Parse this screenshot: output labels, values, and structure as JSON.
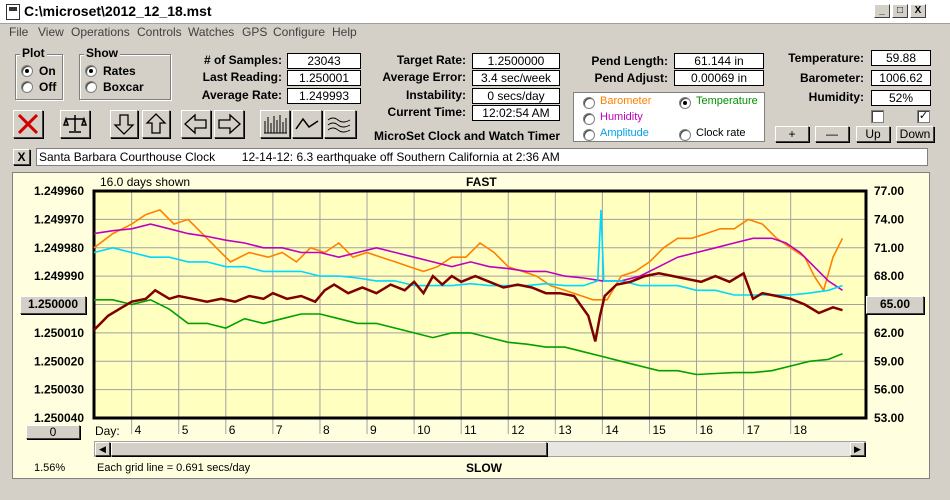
{
  "window": {
    "title": "C:\\microset\\2012_12_18.mst",
    "min": "_",
    "max": "□",
    "close": "X"
  },
  "menu": [
    "File",
    "View",
    "Operations",
    "Controls",
    "Watches",
    "GPS",
    "Configure",
    "Help"
  ],
  "plot": {
    "title": "Plot",
    "on": "On",
    "off": "Off",
    "selected": "On"
  },
  "show": {
    "title": "Show",
    "rates": "Rates",
    "boxcar": "Boxcar",
    "selected": "Rates"
  },
  "stats": {
    "samples_label": "# of Samples:",
    "samples": "23043",
    "last_label": "Last Reading:",
    "last": "1.250001",
    "avg_label": "Average Rate:",
    "avg": "1.249993",
    "target_label": "Target Rate:",
    "target": "1.2500000",
    "error_label": "Average Error:",
    "error": "3.4 sec/week",
    "instab_label": "Instability:",
    "instab": "0 secs/day",
    "time_label": "Current Time:",
    "time": "12:02:54 AM",
    "pend_len_label": "Pend Length:",
    "pend_len": "61.144 in",
    "pend_adj_label": "Pend Adjust:",
    "pend_adj": "0.00069 in",
    "temp_label": "Temperature:",
    "temp": "59.88",
    "baro_label": "Barometer:",
    "baro": "1006.62",
    "hum_label": "Humidity:",
    "hum": "52%"
  },
  "app_name": "MicroSet Clock and Watch Timer",
  "env_options": {
    "barometer": "Barometer",
    "temperature": "Temperature",
    "humidity": "Humidity",
    "amplitude": "Amplitude",
    "clock_rate": "Clock rate",
    "selected": "Temperature",
    "colors": {
      "barometer": "#ff8000",
      "temperature": "#009000",
      "humidity": "#c000c0",
      "amplitude": "#00c0ff",
      "clock_rate": "#000000"
    }
  },
  "env_buttons": {
    "plus": "+",
    "minus": "—",
    "up": "Up",
    "down": "Down"
  },
  "checkboxes": [
    {
      "checked": false
    },
    {
      "checked": true
    }
  ],
  "note": {
    "close": "X",
    "text": "Santa Barbara Courthouse Clock        12-14-12: 6.3 earthquake off Southern California at 2:36 AM"
  },
  "chart_header": {
    "days_shown": "16.0 days shown",
    "fast": "FAST",
    "slow": "SLOW",
    "grid_note": "Each grid line = 0.691 secs/day",
    "percent": "1.56%",
    "day_label": "Day:",
    "left_button": "0",
    "center_button": "1.250000",
    "right_button": "65.00"
  },
  "chart_data": {
    "type": "line",
    "x_label": "Day:",
    "x_ticks": [
      4,
      5,
      6,
      7,
      8,
      9,
      10,
      11,
      12,
      13,
      14,
      15,
      16,
      17,
      18
    ],
    "y_left": {
      "ticks": [
        "1.249960",
        "1.249970",
        "1.249980",
        "1.249990",
        "1.250000",
        "1.250010",
        "1.250020",
        "1.250030",
        "1.250040"
      ],
      "range": [
        1.24996,
        1.25004
      ],
      "inverted": true
    },
    "y_right": {
      "ticks": [
        "77.00",
        "74.00",
        "71.00",
        "68.00",
        "65.00",
        "62.00",
        "59.00",
        "56.00",
        "53.00"
      ],
      "range": [
        53,
        77
      ]
    },
    "xlim": [
      3.2,
      19.6
    ],
    "series": [
      {
        "key": "rate",
        "color": "#800000",
        "axis": "left",
        "x": [
          3.2,
          3.5,
          3.8,
          4.0,
          4.3,
          4.5,
          4.8,
          5.0,
          5.3,
          5.6,
          5.9,
          6.2,
          6.5,
          6.8,
          7.0,
          7.3,
          7.6,
          7.9,
          8.1,
          8.3,
          8.6,
          8.9,
          9.2,
          9.5,
          9.8,
          10.0,
          10.2,
          10.4,
          10.6,
          10.8,
          11.0,
          11.3,
          11.6,
          11.9,
          12.2,
          12.5,
          12.8,
          13.1,
          13.4,
          13.7,
          13.85,
          13.95,
          14.05,
          14.3,
          14.6,
          14.9,
          15.2,
          15.5,
          15.8,
          16.1,
          16.4,
          16.7,
          17.0,
          17.2,
          17.4,
          17.7,
          18.0,
          18.3,
          18.6,
          18.9,
          19.1
        ],
        "y": [
          1.250009,
          1.250004,
          1.250001,
          1.249999,
          1.249998,
          1.249995,
          1.249998,
          1.249997,
          1.249998,
          1.249999,
          1.249998,
          1.249999,
          1.249997,
          1.249998,
          1.249996,
          1.249998,
          1.249997,
          1.249999,
          1.249995,
          1.249993,
          1.249996,
          1.249994,
          1.249996,
          1.249993,
          1.249995,
          1.249992,
          1.249996,
          1.24999,
          1.249993,
          1.24999,
          1.249992,
          1.24999,
          1.249992,
          1.249994,
          1.249993,
          1.249994,
          1.249996,
          1.249996,
          1.249997,
          1.250004,
          1.250013,
          1.250004,
          1.249997,
          1.249993,
          1.249992,
          1.24999,
          1.249989,
          1.24999,
          1.249991,
          1.249992,
          1.24999,
          1.249992,
          1.249989,
          1.249998,
          1.249996,
          1.249997,
          1.249998,
          1.25,
          1.250003,
          1.250001,
          1.250002
        ]
      },
      {
        "key": "barometer",
        "color": "#ff8000",
        "axis": "right",
        "x": [
          3.2,
          3.6,
          4.0,
          4.3,
          4.6,
          4.9,
          5.2,
          5.5,
          5.8,
          6.1,
          6.5,
          6.9,
          7.2,
          7.5,
          7.8,
          8.1,
          8.4,
          8.7,
          9.0,
          9.3,
          9.6,
          9.9,
          10.2,
          10.5,
          10.8,
          11.1,
          11.4,
          11.7,
          12.0,
          12.3,
          12.6,
          12.9,
          13.2,
          13.5,
          13.8,
          14.1,
          14.4,
          14.7,
          15.0,
          15.3,
          15.6,
          15.9,
          16.2,
          16.5,
          16.8,
          17.1,
          17.4,
          17.7,
          18.0,
          18.3,
          18.5,
          18.7,
          18.9,
          19.1
        ],
        "y": [
          71.0,
          72.5,
          73.5,
          74.5,
          75.0,
          73.5,
          74.0,
          72.5,
          71.0,
          69.5,
          70.5,
          70.0,
          70.5,
          69.5,
          71.0,
          70.5,
          71.5,
          70.0,
          70.5,
          70.0,
          69.5,
          69.0,
          68.5,
          69.0,
          70.0,
          70.0,
          71.5,
          70.5,
          69.0,
          68.5,
          68.0,
          67.0,
          66.5,
          66.0,
          65.5,
          65.5,
          68.0,
          68.5,
          69.5,
          71.0,
          72.0,
          72.0,
          72.5,
          73.0,
          73.0,
          74.0,
          73.5,
          72.0,
          71.0,
          70.0,
          68.0,
          66.5,
          70.0,
          72.0
        ]
      },
      {
        "key": "humidity",
        "color": "#c000c0",
        "axis": "right",
        "x": [
          3.2,
          3.6,
          4.0,
          4.4,
          4.8,
          5.2,
          5.6,
          6.0,
          6.4,
          6.8,
          7.2,
          7.6,
          8.0,
          8.4,
          8.8,
          9.2,
          9.6,
          10.0,
          10.4,
          10.8,
          11.2,
          11.6,
          12.0,
          12.4,
          12.8,
          13.2,
          13.6,
          14.0,
          14.4,
          14.8,
          15.2,
          15.6,
          16.0,
          16.4,
          16.8,
          17.2,
          17.6,
          17.9,
          18.2,
          18.5,
          18.8,
          19.1
        ],
        "y": [
          72.5,
          72.8,
          73.0,
          73.5,
          73.0,
          72.5,
          72.2,
          71.8,
          71.5,
          71.0,
          71.0,
          70.5,
          70.5,
          70.0,
          70.5,
          71.0,
          70.5,
          70.0,
          69.5,
          69.0,
          69.5,
          69.0,
          68.8,
          68.5,
          68.5,
          68.0,
          67.8,
          67.5,
          67.5,
          68.0,
          69.0,
          70.0,
          70.5,
          71.0,
          71.5,
          72.0,
          72.0,
          71.5,
          70.5,
          69.0,
          67.5,
          66.5
        ]
      },
      {
        "key": "amplitude",
        "color": "#00d8ff",
        "axis": "right",
        "x": [
          3.2,
          3.6,
          4.0,
          4.4,
          4.8,
          5.2,
          5.6,
          6.0,
          6.4,
          6.8,
          7.2,
          7.6,
          8.0,
          8.4,
          8.8,
          9.2,
          9.6,
          10.0,
          10.4,
          10.8,
          11.2,
          11.6,
          12.0,
          12.4,
          12.8,
          13.2,
          13.6,
          13.9,
          13.97,
          14.03,
          14.1,
          14.4,
          14.8,
          15.2,
          15.6,
          16.0,
          16.4,
          16.8,
          17.2,
          17.6,
          18.0,
          18.4,
          18.8,
          19.1
        ],
        "y": [
          70.5,
          71.0,
          70.5,
          70.0,
          70.0,
          69.5,
          69.5,
          69.0,
          69.0,
          68.5,
          68.5,
          68.5,
          68.0,
          68.0,
          67.8,
          67.5,
          67.5,
          67.0,
          67.0,
          67.0,
          67.2,
          67.0,
          67.0,
          67.0,
          67.2,
          67.0,
          67.0,
          67.5,
          75.0,
          67.5,
          67.5,
          67.5,
          67.0,
          67.0,
          67.0,
          66.5,
          66.5,
          66.0,
          66.0,
          66.0,
          66.0,
          66.2,
          66.5,
          67.0
        ]
      },
      {
        "key": "temperature",
        "color": "#00a000",
        "axis": "right",
        "x": [
          3.2,
          3.6,
          4.0,
          4.4,
          4.8,
          5.2,
          5.6,
          6.0,
          6.4,
          6.8,
          7.2,
          7.6,
          8.0,
          8.4,
          8.8,
          9.2,
          9.6,
          10.0,
          10.4,
          10.8,
          11.2,
          11.6,
          12.0,
          12.4,
          12.8,
          13.2,
          13.6,
          14.0,
          14.4,
          14.8,
          15.2,
          15.6,
          16.0,
          16.4,
          16.8,
          17.2,
          17.6,
          18.0,
          18.4,
          18.8,
          19.1
        ],
        "y": [
          65.5,
          65.5,
          65.0,
          65.5,
          64.5,
          63.0,
          63.0,
          62.5,
          63.5,
          63.0,
          63.5,
          64.0,
          64.0,
          63.5,
          63.0,
          63.0,
          62.5,
          62.0,
          61.5,
          62.0,
          62.0,
          61.5,
          61.0,
          60.8,
          60.5,
          60.5,
          60.0,
          59.5,
          59.0,
          58.5,
          58.0,
          58.0,
          57.6,
          57.7,
          57.8,
          57.8,
          58.0,
          58.5,
          59.0,
          59.2,
          59.8
        ]
      }
    ]
  }
}
